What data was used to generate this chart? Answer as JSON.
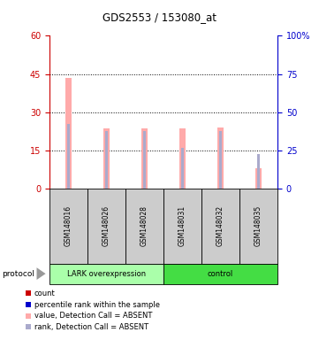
{
  "title": "GDS2553 / 153080_at",
  "samples": [
    "GSM148016",
    "GSM148026",
    "GSM148028",
    "GSM148031",
    "GSM148032",
    "GSM148035"
  ],
  "absent_value_heights": [
    43.5,
    23.5,
    23.5,
    23.5,
    24.0,
    8.0
  ],
  "absent_rank_heights": [
    25.5,
    22.5,
    22.5,
    16.0,
    22.5,
    13.5
  ],
  "ylim_left": [
    0,
    60
  ],
  "ylim_right": [
    0,
    100
  ],
  "yticks_left": [
    0,
    15,
    30,
    45,
    60
  ],
  "yticks_right": [
    0,
    25,
    50,
    75,
    100
  ],
  "absent_bar_color": "#ffaaaa",
  "absent_rank_color": "#aaaacc",
  "label_group1": "LARK overexpression",
  "label_group2": "control",
  "group1_color": "#aaffaa",
  "group2_color": "#44dd44",
  "legend_items": [
    {
      "color": "#cc0000",
      "label": "count"
    },
    {
      "color": "#0000cc",
      "label": "percentile rank within the sample"
    },
    {
      "color": "#ffaaaa",
      "label": "value, Detection Call = ABSENT"
    },
    {
      "color": "#aaaacc",
      "label": "rank, Detection Call = ABSENT"
    }
  ],
  "protocol_label": "protocol",
  "left_tick_color": "#cc0000",
  "right_tick_color": "#0000cc",
  "bar_width": 0.18,
  "rank_bar_width": 0.06
}
